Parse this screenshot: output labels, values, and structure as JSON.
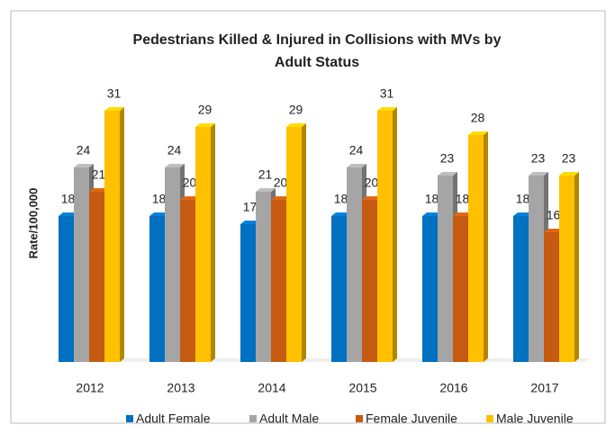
{
  "chart_data": {
    "type": "bar3d",
    "title": [
      "Pedestrians Killed & Injured in Collisions with MVs by",
      "Adult Status"
    ],
    "ylabel": "Rate/100,000",
    "categories": [
      "2012",
      "2013",
      "2014",
      "2015",
      "2016",
      "2017"
    ],
    "series": [
      {
        "name": "Adult Female",
        "color": "#0070c0",
        "values": [
          18,
          18,
          17,
          18,
          18,
          18
        ]
      },
      {
        "name": "Adult Male",
        "color": "#a5a5a5",
        "values": [
          24,
          24,
          21,
          24,
          23,
          23
        ]
      },
      {
        "name": "Female Juvenile",
        "color": "#c55a11",
        "values": [
          21,
          20,
          20,
          20,
          18,
          16
        ]
      },
      {
        "name": "Male Juvenile",
        "color": "#ffc000",
        "values": [
          31,
          29,
          29,
          31,
          28,
          23
        ]
      }
    ]
  }
}
